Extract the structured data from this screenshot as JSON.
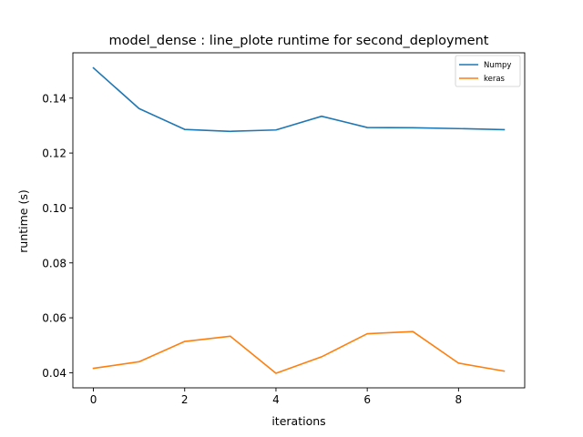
{
  "chart_data": {
    "type": "line",
    "title": "model_dense : line_plote runtime  for second_deployment",
    "xlabel": "iterations",
    "ylabel": "runtime (s)",
    "x": [
      0,
      1,
      2,
      3,
      4,
      5,
      6,
      7,
      8,
      9
    ],
    "xlim": [
      -0.45,
      9.45
    ],
    "ylim": [
      0.0345,
      0.1565
    ],
    "xticks": [
      0,
      2,
      4,
      6,
      8
    ],
    "yticks": [
      0.04,
      0.06,
      0.08,
      0.1,
      0.12,
      0.14
    ],
    "xtick_labels": [
      "0",
      "2",
      "4",
      "6",
      "8"
    ],
    "ytick_labels": [
      "0.04",
      "0.06",
      "0.08",
      "0.10",
      "0.12",
      "0.14"
    ],
    "grid": false,
    "legend_position": "top-right",
    "series": [
      {
        "name": "Numpy",
        "color": "#1f77b4",
        "values": [
          0.151,
          0.1362,
          0.1286,
          0.1279,
          0.1284,
          0.1334,
          0.1293,
          0.1292,
          0.1289,
          0.1285
        ]
      },
      {
        "name": "keras",
        "color": "#ff7f0e",
        "values": [
          0.0416,
          0.044,
          0.0514,
          0.0533,
          0.0398,
          0.0458,
          0.0542,
          0.055,
          0.0435,
          0.0406
        ]
      }
    ]
  }
}
